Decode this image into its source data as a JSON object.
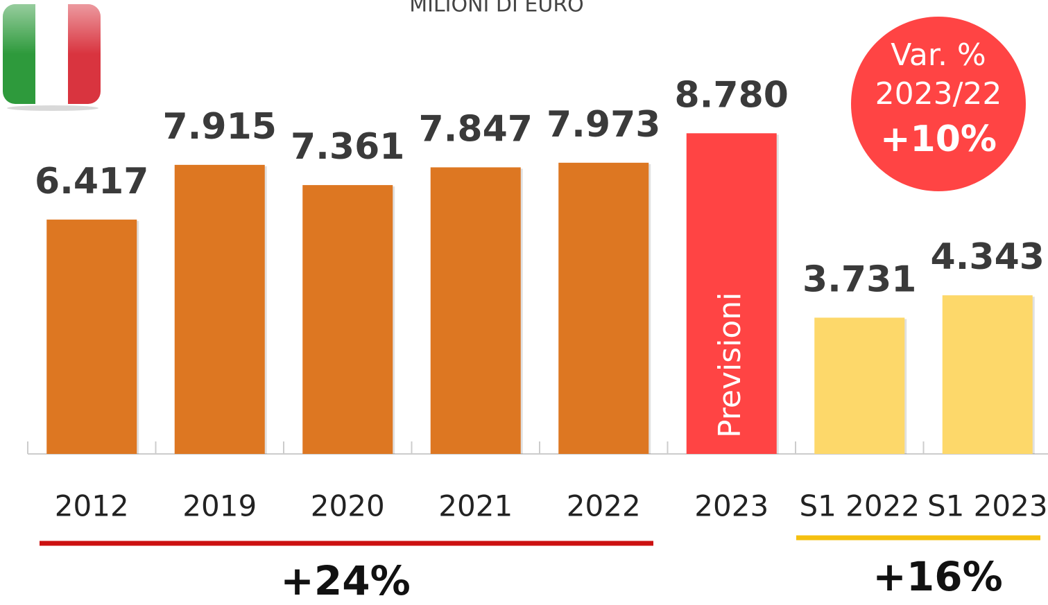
{
  "chart_data": {
    "type": "bar",
    "title": "MILIONI DI EURO",
    "categories": [
      "2012",
      "2019",
      "2020",
      "2021",
      "2022",
      "2023",
      "S1 2022",
      "S1 2023"
    ],
    "values": [
      6417,
      7915,
      7361,
      7847,
      7973,
      8780,
      3731,
      4343
    ],
    "value_labels": [
      "6.417",
      "7.915",
      "7.361",
      "7.847",
      "7.973",
      "8.780",
      "3.731",
      "4.343"
    ],
    "colors": [
      "#dd7722",
      "#dd7722",
      "#dd7722",
      "#dd7722",
      "#dd7722",
      "#ff4444",
      "#fdd86a",
      "#fdd86a"
    ],
    "ylim": [
      0,
      10000
    ],
    "annotations": {
      "forecast": "Previsioni",
      "badge_title": "Var. %",
      "badge_period": "2023/22",
      "badge_value": "+10%",
      "growth_left": "+24%",
      "growth_right": "+16%"
    }
  }
}
